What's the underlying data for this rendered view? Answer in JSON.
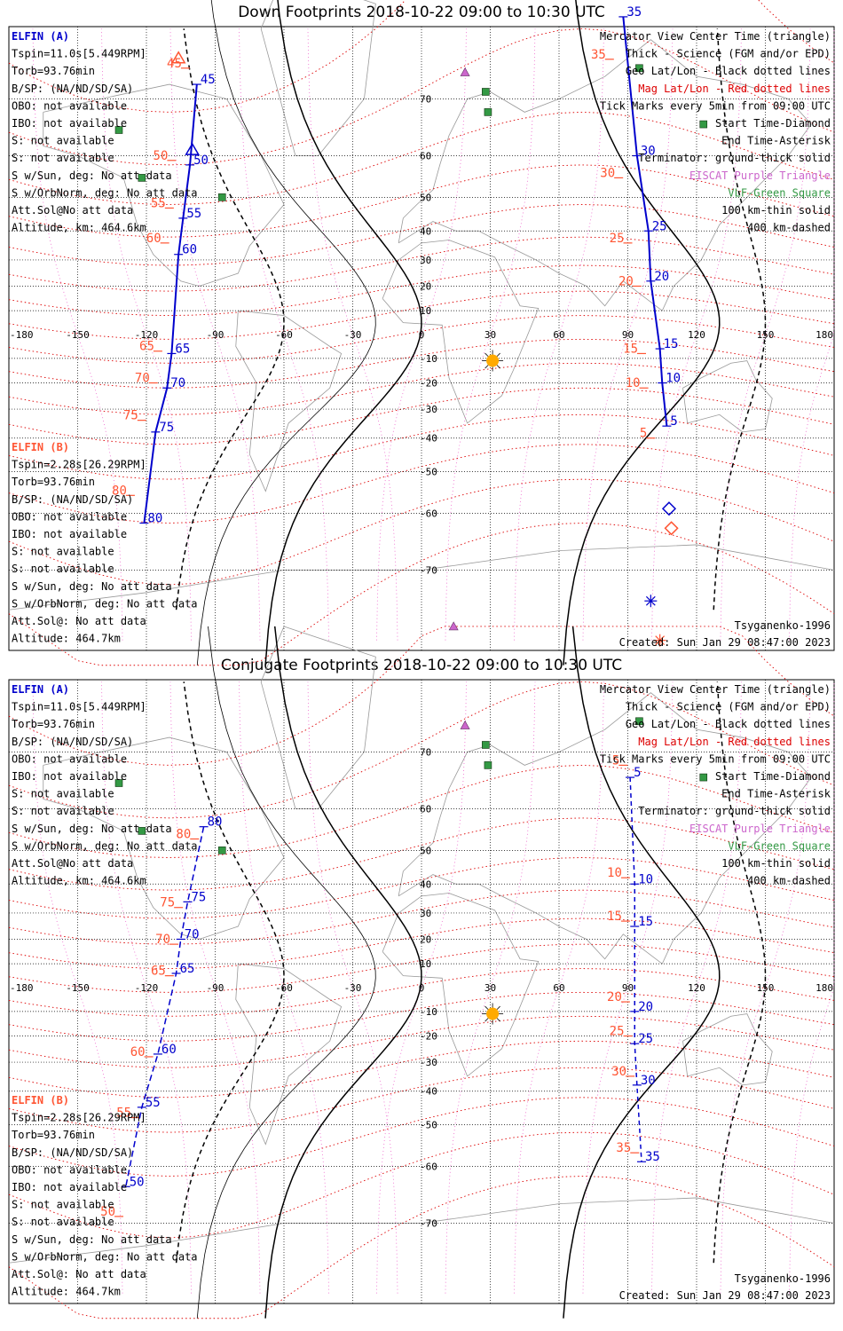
{
  "panels": [
    {
      "id": "down",
      "title": "Down Footprints 2018-10-22 09:00 to 10:30 UTC",
      "left_info_a": [
        "ELFIN (A)",
        "Tspin=11.0s[5.449RPM]",
        "Torb=93.76min",
        "B/SP: (NA/ND/SD/SA)",
        "OBO: not available",
        "IBO: not available",
        "S: not available",
        "S: not available",
        "S w/Sun, deg: No att data",
        "S w/OrbNorm, deg: No att data",
        "Att.Sol@No att data",
        "Altitude, km: 464.6km"
      ],
      "left_info_b": [
        "ELFIN (B)",
        "Tspin=2.28s[26.29RPM]",
        "Torb=93.76min",
        "B/SP: (NA/ND/SD/SA)",
        "OBO: not available",
        "IBO: not available",
        "S: not available",
        "S: not available",
        "S w/Sun, deg: No att data",
        "S w/OrbNorm, deg: No att data",
        "Att.Sol@: No att data",
        "Altitude: 464.7km"
      ],
      "legend": [
        "Mercator View Center Time (triangle)",
        "Thick - Science (FGM and/or EPD)",
        "Geo Lat/Lon - Black dotted lines",
        "Mag Lat/Lon - Red dotted lines",
        "Tick Marks every 5min from 09:00 UTC",
        "Start Time-Diamond",
        "End Time-Asterisk",
        "Terminator: ground-thick solid",
        "EISCAT Purple Triangle",
        "VLF-Green Square",
        "100 km-thin solid",
        "400 km-dashed"
      ],
      "model": "Tsyganenko-1996",
      "created": "Created: Sun Jan 29 08:47:00 2023",
      "track_a": [
        {
          "lon": -98,
          "lat": 72,
          "label": "45"
        },
        {
          "lon": -101,
          "lat": 58,
          "label": "50"
        },
        {
          "lon": -104,
          "lat": 44,
          "label": "55"
        },
        {
          "lon": -106,
          "lat": 32,
          "label": "60"
        },
        {
          "lon": -109,
          "lat": -8,
          "label": "65"
        },
        {
          "lon": -111,
          "lat": -22,
          "label": "70"
        },
        {
          "lon": -116,
          "lat": -38,
          "label": "75"
        },
        {
          "lon": -121,
          "lat": -62,
          "label": "80"
        }
      ],
      "track_b": [
        {
          "lon": -103,
          "lat": 74,
          "label": "45"
        },
        {
          "lon": -109,
          "lat": 59,
          "label": "50"
        },
        {
          "lon": -110,
          "lat": 47,
          "label": "55"
        },
        {
          "lon": -112,
          "lat": 36,
          "label": "60"
        },
        {
          "lon": -115,
          "lat": -7,
          "label": "65"
        },
        {
          "lon": -117,
          "lat": -20,
          "label": "70"
        },
        {
          "lon": -122,
          "lat": -34,
          "label": "75"
        },
        {
          "lon": -127,
          "lat": -56,
          "label": "80"
        }
      ],
      "track_c": [
        {
          "lon": 88,
          "lat": 79,
          "label": "35"
        },
        {
          "lon": 94,
          "lat": 60,
          "label": "30"
        },
        {
          "lon": 99,
          "lat": 40,
          "label": "25"
        },
        {
          "lon": 100,
          "lat": 22,
          "label": "20"
        },
        {
          "lon": 104,
          "lat": -6,
          "label": "15"
        },
        {
          "lon": 105,
          "lat": -20,
          "label": "10"
        },
        {
          "lon": 107,
          "lat": -36,
          "label": "5"
        }
      ],
      "track_d": [
        {
          "lon": 82,
          "lat": 75,
          "label": "35"
        },
        {
          "lon": 86,
          "lat": 55,
          "label": "30"
        },
        {
          "lon": 90,
          "lat": 36,
          "label": "25"
        },
        {
          "lon": 94,
          "lat": 20,
          "label": "20"
        },
        {
          "lon": 96,
          "lat": -8,
          "label": "15"
        },
        {
          "lon": 97,
          "lat": -22,
          "label": "10"
        },
        {
          "lon": 100,
          "lat": -40,
          "label": "5"
        }
      ]
    },
    {
      "id": "conjugate",
      "title": "Conjugate Footprints 2018-10-22 09:00 to 10:30 UTC",
      "left_info_a": [
        "ELFIN (A)",
        "Tspin=11.0s[5.449RPM]",
        "Torb=93.76min",
        "B/SP: (NA/ND/SD/SA)",
        "OBO: not available",
        "IBO: not available",
        "S: not available",
        "S: not available",
        "S w/Sun, deg: No att data",
        "S w/OrbNorm, deg: No att data",
        "Att.Sol@No att data",
        "Altitude, km: 464.6km"
      ],
      "left_info_b": [
        "ELFIN (B)",
        "Tspin=2.28s[26.29RPM]",
        "Torb=93.76min",
        "B/SP: (NA/ND/SD/SA)",
        "OBO: not available",
        "IBO: not available",
        "S: not available",
        "S: not available",
        "S w/Sun, deg: No att data",
        "S w/OrbNorm, deg: No att data",
        "Att.Sol@: No att data",
        "Altitude: 464.7km"
      ],
      "legend": [
        "Mercator View Center Time (triangle)",
        "Thick - Science (FGM and/or EPD)",
        "Geo Lat/Lon - Black dotted lines",
        "Mag Lat/Lon - Red dotted lines",
        "Tick Marks every 5min from 09:00 UTC",
        "Start Time-Diamond",
        "End Time-Asterisk",
        "Terminator: ground-thick solid",
        "EISCAT Purple Triangle",
        "VLF-Green Square",
        "100 km-thin solid",
        "400 km-dashed"
      ],
      "model": "Tsyganenko-1996",
      "created": "Created: Sun Jan 29 08:47:00 2023",
      "track_a": [
        {
          "lon": -95,
          "lat": 56,
          "label": "80"
        },
        {
          "lon": -102,
          "lat": 34,
          "label": "75"
        },
        {
          "lon": -105,
          "lat": 20,
          "label": "70"
        },
        {
          "lon": -107,
          "lat": 6,
          "label": "65"
        },
        {
          "lon": -115,
          "lat": -27,
          "label": "60"
        },
        {
          "lon": -122,
          "lat": -45,
          "label": "55"
        },
        {
          "lon": -129,
          "lat": -64,
          "label": "50"
        }
      ],
      "track_b": [
        {
          "lon": -99,
          "lat": 53,
          "label": "80"
        },
        {
          "lon": -106,
          "lat": 32,
          "label": "75"
        },
        {
          "lon": -108,
          "lat": 18,
          "label": "70"
        },
        {
          "lon": -110,
          "lat": 5,
          "label": "65"
        },
        {
          "lon": -119,
          "lat": -28,
          "label": "60"
        },
        {
          "lon": -125,
          "lat": -48,
          "label": "55"
        },
        {
          "lon": -132,
          "lat": -69,
          "label": "50"
        }
      ],
      "track_c": [
        {
          "lon": 91,
          "lat": 66,
          "label": "5"
        },
        {
          "lon": 93,
          "lat": 40,
          "label": "10"
        },
        {
          "lon": 93,
          "lat": 25,
          "label": "15"
        },
        {
          "lon": 93,
          "lat": -10,
          "label": "20"
        },
        {
          "lon": 93,
          "lat": -23,
          "label": "25"
        },
        {
          "lon": 94,
          "lat": -38,
          "label": "30"
        },
        {
          "lon": 96,
          "lat": -59,
          "label": "35"
        }
      ],
      "track_d": [
        {
          "lon": 88,
          "lat": 68,
          "label": "5"
        },
        {
          "lon": 89,
          "lat": 42,
          "label": "10"
        },
        {
          "lon": 89,
          "lat": 27,
          "label": "15"
        },
        {
          "lon": 89,
          "lat": -6,
          "label": "20"
        },
        {
          "lon": 90,
          "lat": -20,
          "label": "25"
        },
        {
          "lon": 91,
          "lat": -35,
          "label": "30"
        },
        {
          "lon": 93,
          "lat": -57,
          "label": "35"
        }
      ]
    }
  ],
  "lon_ticks": [
    "-180",
    "-150",
    "-120",
    "-90",
    "-60",
    "-30",
    "0",
    "30",
    "60",
    "90",
    "120",
    "150",
    "180"
  ],
  "lat_ticks": [
    "70",
    "60",
    "50",
    "40",
    "30",
    "20",
    "10",
    "-10",
    "-20",
    "-30",
    "-40",
    "-50",
    "-60",
    "-70"
  ],
  "colors": {
    "elfin_a": "#0000cc",
    "elfin_b": "#ff5533",
    "mag_grid": "#dd0000",
    "geo_grid": "#000000",
    "eiscat": "#cc66cc",
    "vlf": "#339944",
    "sun": "#ffaa00",
    "coast": "#999999"
  }
}
